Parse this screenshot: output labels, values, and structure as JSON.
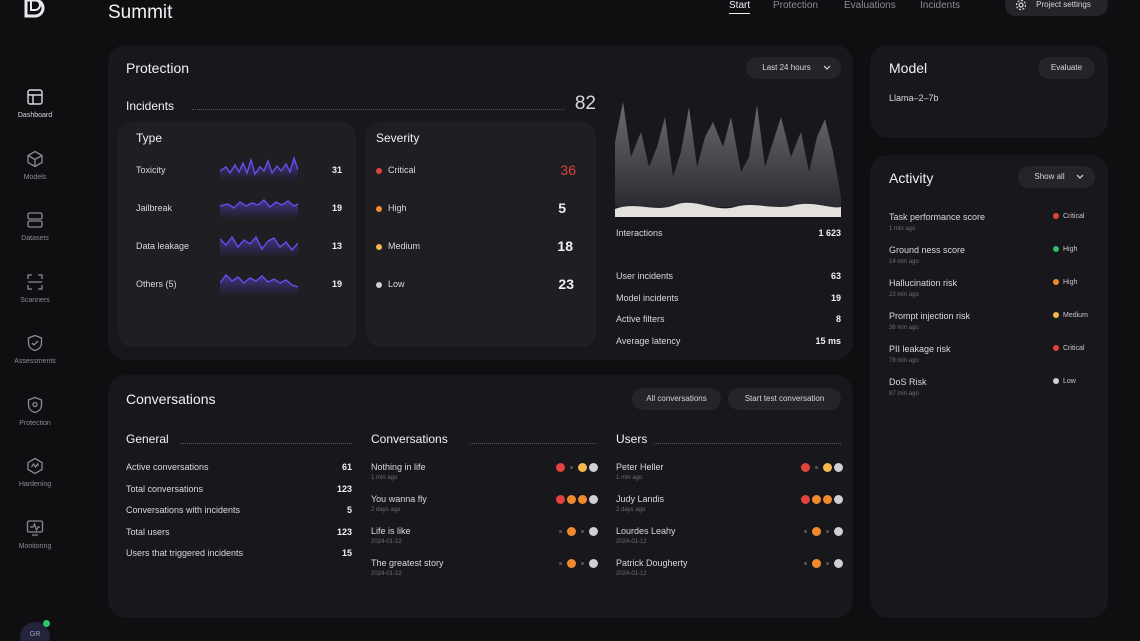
{
  "app": {
    "title": "Summit",
    "avatar_initials": "GR"
  },
  "colors": {
    "critical": "#e0433c",
    "high": "#f08a2c",
    "medium": "#f2b84b",
    "low": "#cfcfd6",
    "sparkline": "#6a4cf0"
  },
  "topnav": {
    "tabs": [
      "Start",
      "Protection",
      "Evaluations",
      "Incidents"
    ],
    "active": "Start",
    "settings_label": "Project settings"
  },
  "sidebar": {
    "items": [
      {
        "label": "Dashboard",
        "icon": "dashboard-icon"
      },
      {
        "label": "Models",
        "icon": "cube-icon"
      },
      {
        "label": "Datasets",
        "icon": "database-icon"
      },
      {
        "label": "Scanners",
        "icon": "scan-icon"
      },
      {
        "label": "Assessments",
        "icon": "shield-check-icon"
      },
      {
        "label": "Protection",
        "icon": "shield-icon"
      },
      {
        "label": "Hardening",
        "icon": "hardening-icon"
      },
      {
        "label": "Monitoring",
        "icon": "monitor-icon"
      }
    ]
  },
  "protection": {
    "title": "Protection",
    "range_label": "Last 24 hours",
    "incidents_label": "Incidents",
    "incidents_total": "82",
    "type": {
      "title": "Type",
      "rows": [
        {
          "label": "Toxicity",
          "value": "31"
        },
        {
          "label": "Jailbreak",
          "value": "19"
        },
        {
          "label": "Data leakage",
          "value": "13"
        },
        {
          "label": "Others (5)",
          "value": "19"
        }
      ]
    },
    "severity": {
      "title": "Severity",
      "rows": [
        {
          "label": "Critical",
          "value": "36"
        },
        {
          "label": "High",
          "value": "5"
        },
        {
          "label": "Medium",
          "value": "18"
        },
        {
          "label": "Low",
          "value": "23"
        }
      ]
    },
    "interactions_label": "Interactions",
    "interactions_value": "1 623",
    "stats": [
      {
        "label": "User incidents",
        "value": "63"
      },
      {
        "label": "Model incidents",
        "value": "19"
      },
      {
        "label": "Active filters",
        "value": "8"
      },
      {
        "label": "Average latency",
        "value": "15 ms"
      }
    ]
  },
  "model": {
    "title": "Model",
    "evaluate_label": "Evaluate",
    "name": "Llama–2–7b"
  },
  "activity": {
    "title": "Activity",
    "show_all_label": "Show all",
    "items": [
      {
        "title": "Task performance score",
        "time": "1 min ago",
        "level": "Critical"
      },
      {
        "title": "Ground ness score",
        "time": "14 min ago",
        "level": "High"
      },
      {
        "title": "Hallucination risk",
        "time": "23 min ago",
        "level": "High"
      },
      {
        "title": "Prompt injection risk",
        "time": "36 min ago",
        "level": "Medium"
      },
      {
        "title": "PII leakage risk",
        "time": "78 min ago",
        "level": "Critical"
      },
      {
        "title": "DoS Risk",
        "time": "87 min ago",
        "level": "Low"
      }
    ]
  },
  "conversations": {
    "title": "Conversations",
    "all_label": "All conversations",
    "start_label": "Start test conversation",
    "general": {
      "title": "General",
      "rows": [
        {
          "label": "Active conversations",
          "value": "61"
        },
        {
          "label": "Total conversations",
          "value": "123"
        },
        {
          "label": "Conversations with incidents",
          "value": "5"
        },
        {
          "label": "Total users",
          "value": "123"
        },
        {
          "label": "Users that triggered incidents",
          "value": "15"
        }
      ]
    },
    "list": {
      "title": "Conversations",
      "items": [
        {
          "title": "Nothing in life",
          "time": "1 min ago",
          "badges": [
            "critical",
            "sep",
            "medium",
            "low"
          ]
        },
        {
          "title": "You wanna fly",
          "time": "2 days ago",
          "badges": [
            "critical",
            "high",
            "high",
            "low"
          ]
        },
        {
          "title": "Life is like",
          "time": "2024-01-12",
          "badges": [
            "sep",
            "high",
            "sep",
            "low"
          ]
        },
        {
          "title": "The greatest story",
          "time": "2024-01-12",
          "badges": [
            "sep",
            "high",
            "sep",
            "low"
          ]
        }
      ]
    },
    "users": {
      "title": "Users",
      "items": [
        {
          "title": "Peter Heller",
          "time": "1 min ago",
          "badges": [
            "critical",
            "sep",
            "medium",
            "low"
          ]
        },
        {
          "title": "Judy Landis",
          "time": "2 days ago",
          "badges": [
            "critical",
            "high",
            "high",
            "low"
          ]
        },
        {
          "title": "Lourdes Leahy",
          "time": "2024-01-12",
          "badges": [
            "sep",
            "high",
            "sep",
            "low"
          ]
        },
        {
          "title": "Patrick Dougherty",
          "time": "2024-01-12",
          "badges": [
            "sep",
            "high",
            "sep",
            "low"
          ]
        }
      ]
    }
  }
}
